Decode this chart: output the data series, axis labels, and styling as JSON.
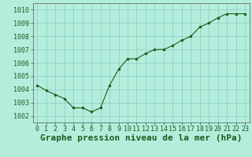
{
  "x": [
    0,
    1,
    2,
    3,
    4,
    5,
    6,
    7,
    8,
    9,
    10,
    11,
    12,
    13,
    14,
    15,
    16,
    17,
    18,
    19,
    20,
    21,
    22,
    23
  ],
  "y": [
    1004.3,
    1003.9,
    1003.6,
    1003.3,
    1002.6,
    1002.6,
    1002.3,
    1002.6,
    1004.3,
    1005.5,
    1006.3,
    1006.3,
    1006.7,
    1007.0,
    1007.0,
    1007.3,
    1007.7,
    1008.0,
    1008.7,
    1009.0,
    1009.4,
    1009.7,
    1009.7,
    1009.7
  ],
  "line_color": "#1a5c1a",
  "marker_color": "#1a5c1a",
  "bg_color": "#b3eedd",
  "grid_color": "#88ccbb",
  "xlabel": "Graphe pression niveau de la mer (hPa)",
  "ylim": [
    1001.5,
    1010.5
  ],
  "yticks": [
    1002,
    1003,
    1004,
    1005,
    1006,
    1007,
    1008,
    1009,
    1010
  ],
  "xticks": [
    0,
    1,
    2,
    3,
    4,
    5,
    6,
    7,
    8,
    9,
    10,
    11,
    12,
    13,
    14,
    15,
    16,
    17,
    18,
    19,
    20,
    21,
    22,
    23
  ],
  "tick_label_fontsize": 6.0,
  "xlabel_fontsize": 8.0,
  "figsize": [
    3.2,
    2.0
  ],
  "dpi": 100
}
